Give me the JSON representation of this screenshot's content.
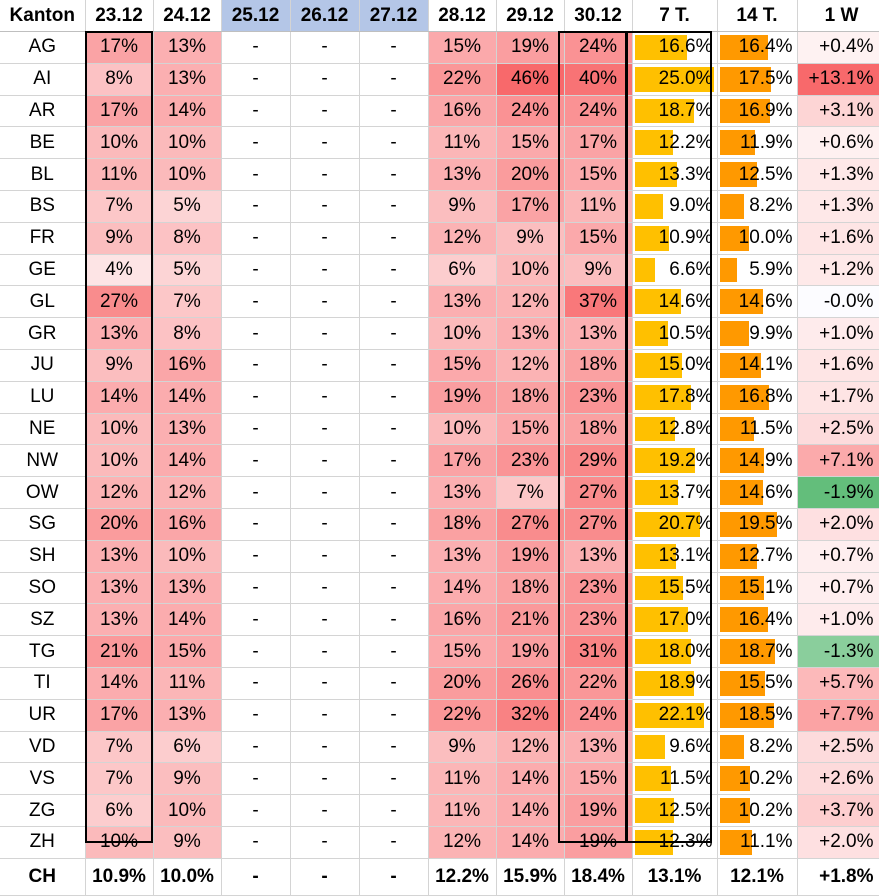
{
  "table": {
    "headers": [
      "Kanton",
      "23.12",
      "24.12",
      "25.12",
      "26.12",
      "27.12",
      "28.12",
      "29.12",
      "30.12",
      "7 T.",
      "14 T.",
      "1 W"
    ],
    "holiday_columns": [
      3,
      4,
      5
    ],
    "rows": [
      {
        "kanton": "AG",
        "d2312": "17%",
        "d2412": "13%",
        "d2512": "-",
        "d2612": "-",
        "d2712": "-",
        "d2812": "15%",
        "d2912": "19%",
        "d3012": "24%",
        "t7": "16.6%",
        "t14": "16.4%",
        "w1": "+0.4%"
      },
      {
        "kanton": "AI",
        "d2312": "8%",
        "d2412": "13%",
        "d2512": "-",
        "d2612": "-",
        "d2712": "-",
        "d2812": "22%",
        "d2912": "46%",
        "d3012": "40%",
        "t7": "25.0%",
        "t14": "17.5%",
        "w1": "+13.1%"
      },
      {
        "kanton": "AR",
        "d2312": "17%",
        "d2412": "14%",
        "d2512": "-",
        "d2612": "-",
        "d2712": "-",
        "d2812": "16%",
        "d2912": "24%",
        "d3012": "24%",
        "t7": "18.7%",
        "t14": "16.9%",
        "w1": "+3.1%"
      },
      {
        "kanton": "BE",
        "d2312": "10%",
        "d2412": "10%",
        "d2512": "-",
        "d2612": "-",
        "d2712": "-",
        "d2812": "11%",
        "d2912": "15%",
        "d3012": "17%",
        "t7": "12.2%",
        "t14": "11.9%",
        "w1": "+0.6%"
      },
      {
        "kanton": "BL",
        "d2312": "11%",
        "d2412": "10%",
        "d2512": "-",
        "d2612": "-",
        "d2712": "-",
        "d2812": "13%",
        "d2912": "20%",
        "d3012": "15%",
        "t7": "13.3%",
        "t14": "12.5%",
        "w1": "+1.3%"
      },
      {
        "kanton": "BS",
        "d2312": "7%",
        "d2412": "5%",
        "d2512": "-",
        "d2612": "-",
        "d2712": "-",
        "d2812": "9%",
        "d2912": "17%",
        "d3012": "11%",
        "t7": "9.0%",
        "t14": "8.2%",
        "w1": "+1.3%"
      },
      {
        "kanton": "FR",
        "d2312": "9%",
        "d2412": "8%",
        "d2512": "-",
        "d2612": "-",
        "d2712": "-",
        "d2812": "12%",
        "d2912": "9%",
        "d3012": "15%",
        "t7": "10.9%",
        "t14": "10.0%",
        "w1": "+1.6%"
      },
      {
        "kanton": "GE",
        "d2312": "4%",
        "d2412": "5%",
        "d2512": "-",
        "d2612": "-",
        "d2712": "-",
        "d2812": "6%",
        "d2912": "10%",
        "d3012": "9%",
        "t7": "6.6%",
        "t14": "5.9%",
        "w1": "+1.2%"
      },
      {
        "kanton": "GL",
        "d2312": "27%",
        "d2412": "7%",
        "d2512": "-",
        "d2612": "-",
        "d2712": "-",
        "d2812": "13%",
        "d2912": "12%",
        "d3012": "37%",
        "t7": "14.6%",
        "t14": "14.6%",
        "w1": "-0.0%"
      },
      {
        "kanton": "GR",
        "d2312": "13%",
        "d2412": "8%",
        "d2512": "-",
        "d2612": "-",
        "d2712": "-",
        "d2812": "10%",
        "d2912": "13%",
        "d3012": "13%",
        "t7": "10.5%",
        "t14": "9.9%",
        "w1": "+1.0%"
      },
      {
        "kanton": "JU",
        "d2312": "9%",
        "d2412": "16%",
        "d2512": "-",
        "d2612": "-",
        "d2712": "-",
        "d2812": "15%",
        "d2912": "12%",
        "d3012": "18%",
        "t7": "15.0%",
        "t14": "14.1%",
        "w1": "+1.6%"
      },
      {
        "kanton": "LU",
        "d2312": "14%",
        "d2412": "14%",
        "d2512": "-",
        "d2612": "-",
        "d2712": "-",
        "d2812": "19%",
        "d2912": "18%",
        "d3012": "23%",
        "t7": "17.8%",
        "t14": "16.8%",
        "w1": "+1.7%"
      },
      {
        "kanton": "NE",
        "d2312": "10%",
        "d2412": "13%",
        "d2512": "-",
        "d2612": "-",
        "d2712": "-",
        "d2812": "10%",
        "d2912": "15%",
        "d3012": "18%",
        "t7": "12.8%",
        "t14": "11.5%",
        "w1": "+2.5%"
      },
      {
        "kanton": "NW",
        "d2312": "10%",
        "d2412": "14%",
        "d2512": "-",
        "d2612": "-",
        "d2712": "-",
        "d2812": "17%",
        "d2912": "23%",
        "d3012": "29%",
        "t7": "19.2%",
        "t14": "14.9%",
        "w1": "+7.1%"
      },
      {
        "kanton": "OW",
        "d2312": "12%",
        "d2412": "12%",
        "d2512": "-",
        "d2612": "-",
        "d2712": "-",
        "d2812": "13%",
        "d2912": "7%",
        "d3012": "27%",
        "t7": "13.7%",
        "t14": "14.6%",
        "w1": "-1.9%"
      },
      {
        "kanton": "SG",
        "d2312": "20%",
        "d2412": "16%",
        "d2512": "-",
        "d2612": "-",
        "d2712": "-",
        "d2812": "18%",
        "d2912": "27%",
        "d3012": "27%",
        "t7": "20.7%",
        "t14": "19.5%",
        "w1": "+2.0%"
      },
      {
        "kanton": "SH",
        "d2312": "13%",
        "d2412": "10%",
        "d2512": "-",
        "d2612": "-",
        "d2712": "-",
        "d2812": "13%",
        "d2912": "19%",
        "d3012": "13%",
        "t7": "13.1%",
        "t14": "12.7%",
        "w1": "+0.7%"
      },
      {
        "kanton": "SO",
        "d2312": "13%",
        "d2412": "13%",
        "d2512": "-",
        "d2612": "-",
        "d2712": "-",
        "d2812": "14%",
        "d2912": "18%",
        "d3012": "23%",
        "t7": "15.5%",
        "t14": "15.1%",
        "w1": "+0.7%"
      },
      {
        "kanton": "SZ",
        "d2312": "13%",
        "d2412": "14%",
        "d2512": "-",
        "d2612": "-",
        "d2712": "-",
        "d2812": "16%",
        "d2912": "21%",
        "d3012": "23%",
        "t7": "17.0%",
        "t14": "16.4%",
        "w1": "+1.0%"
      },
      {
        "kanton": "TG",
        "d2312": "21%",
        "d2412": "15%",
        "d2512": "-",
        "d2612": "-",
        "d2712": "-",
        "d2812": "15%",
        "d2912": "19%",
        "d3012": "31%",
        "t7": "18.0%",
        "t14": "18.7%",
        "w1": "-1.3%"
      },
      {
        "kanton": "TI",
        "d2312": "14%",
        "d2412": "11%",
        "d2512": "-",
        "d2612": "-",
        "d2712": "-",
        "d2812": "20%",
        "d2912": "26%",
        "d3012": "22%",
        "t7": "18.9%",
        "t14": "15.5%",
        "w1": "+5.7%"
      },
      {
        "kanton": "UR",
        "d2312": "17%",
        "d2412": "13%",
        "d2512": "-",
        "d2612": "-",
        "d2712": "-",
        "d2812": "22%",
        "d2912": "32%",
        "d3012": "24%",
        "t7": "22.1%",
        "t14": "18.5%",
        "w1": "+7.7%"
      },
      {
        "kanton": "VD",
        "d2312": "7%",
        "d2412": "6%",
        "d2512": "-",
        "d2612": "-",
        "d2712": "-",
        "d2812": "9%",
        "d2912": "12%",
        "d3012": "13%",
        "t7": "9.6%",
        "t14": "8.2%",
        "w1": "+2.5%"
      },
      {
        "kanton": "VS",
        "d2312": "7%",
        "d2412": "9%",
        "d2512": "-",
        "d2612": "-",
        "d2712": "-",
        "d2812": "11%",
        "d2912": "14%",
        "d3012": "15%",
        "t7": "11.5%",
        "t14": "10.2%",
        "w1": "+2.6%"
      },
      {
        "kanton": "ZG",
        "d2312": "6%",
        "d2412": "10%",
        "d2512": "-",
        "d2612": "-",
        "d2712": "-",
        "d2812": "11%",
        "d2912": "14%",
        "d3012": "19%",
        "t7": "12.5%",
        "t14": "10.2%",
        "w1": "+3.7%"
      },
      {
        "kanton": "ZH",
        "d2312": "10%",
        "d2412": "9%",
        "d2512": "-",
        "d2612": "-",
        "d2712": "-",
        "d2812": "12%",
        "d2912": "14%",
        "d3012": "19%",
        "t7": "12.3%",
        "t14": "11.1%",
        "w1": "+2.0%"
      }
    ],
    "total": {
      "kanton": "CH",
      "d2312": "10.9%",
      "d2412": "10.0%",
      "d2512": "-",
      "d2612": "-",
      "d2712": "-",
      "d2812": "12.2%",
      "d2912": "15.9%",
      "d3012": "18.4%",
      "t7": "13.1%",
      "t14": "12.1%",
      "w1": "+1.8%"
    }
  },
  "colors": {
    "heat_low": "#fde4e5",
    "heat_high": "#f8696b",
    "holiday_header": "#b4c6e7",
    "bar_7t": "#ffc000",
    "bar_14t": "#ff9900",
    "change_positive": "#f8696b",
    "change_negative": "#63be7b"
  },
  "scales": {
    "heat_min": 4,
    "heat_max": 46,
    "bar_max": 25
  }
}
